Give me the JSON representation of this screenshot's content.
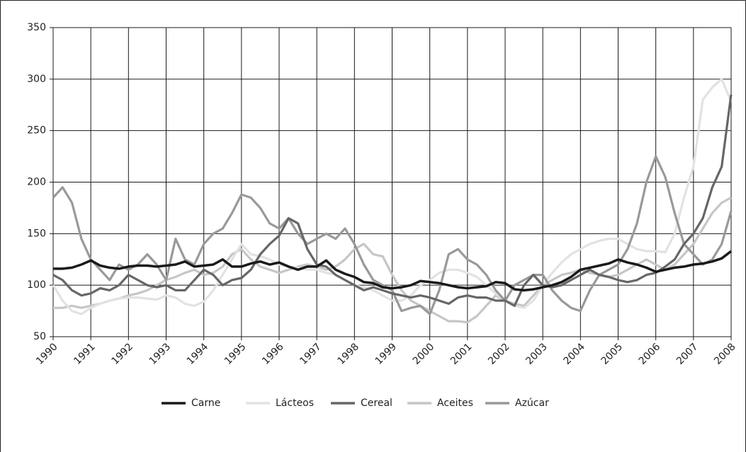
{
  "chart_data": {
    "type": "line",
    "x": [
      1990,
      1990.25,
      1990.5,
      1990.75,
      1991,
      1991.25,
      1991.5,
      1991.75,
      1992,
      1992.25,
      1992.5,
      1992.75,
      1993,
      1993.25,
      1993.5,
      1993.75,
      1994,
      1994.25,
      1994.5,
      1994.75,
      1995,
      1995.25,
      1995.5,
      1995.75,
      1996,
      1996.25,
      1996.5,
      1996.75,
      1997,
      1997.25,
      1997.5,
      1997.75,
      1998,
      1998.25,
      1998.5,
      1998.75,
      1999,
      1999.25,
      1999.5,
      1999.75,
      2000,
      2000.25,
      2000.5,
      2000.75,
      2001,
      2001.25,
      2001.5,
      2001.75,
      2002,
      2002.25,
      2002.5,
      2002.75,
      2003,
      2003.25,
      2003.5,
      2003.75,
      2004,
      2004.25,
      2004.5,
      2004.75,
      2005,
      2005.25,
      2005.5,
      2005.75,
      2006,
      2006.25,
      2006.5,
      2006.75,
      2007,
      2007.25,
      2007.5,
      2007.75,
      2008
    ],
    "series": [
      {
        "name": "Carne",
        "color": "#1a1a1a",
        "values": [
          116,
          116,
          117,
          120,
          124,
          119,
          117,
          116,
          118,
          119,
          119,
          118,
          119,
          120,
          123,
          118,
          119,
          120,
          125,
          118,
          118,
          121,
          123,
          120,
          122,
          118,
          115,
          118,
          118,
          124,
          115,
          111,
          108,
          103,
          102,
          98,
          97,
          98,
          100,
          104,
          103,
          102,
          100,
          98,
          97,
          98,
          99,
          103,
          102,
          96,
          95,
          96,
          98,
          100,
          103,
          108,
          115,
          117,
          119,
          121,
          125,
          122,
          120,
          117,
          113,
          115,
          117,
          118,
          120,
          121,
          123,
          126,
          133
        ]
      },
      {
        "name": "Lácteos",
        "color": "#e2e2e2",
        "values": [
          100,
          85,
          75,
          72,
          78,
          82,
          85,
          87,
          88,
          88,
          87,
          86,
          90,
          88,
          82,
          80,
          84,
          95,
          110,
          125,
          140,
          130,
          128,
          125,
          120,
          118,
          117,
          115,
          115,
          112,
          110,
          105,
          100,
          98,
          95,
          90,
          85,
          85,
          90,
          100,
          105,
          112,
          115,
          115,
          112,
          108,
          100,
          92,
          85,
          80,
          78,
          85,
          100,
          112,
          122,
          130,
          135,
          140,
          143,
          145,
          145,
          140,
          135,
          133,
          133,
          132,
          150,
          185,
          215,
          280,
          292,
          300,
          278
        ]
      },
      {
        "name": "Cereal",
        "color": "#666666",
        "values": [
          110,
          105,
          95,
          90,
          92,
          97,
          95,
          100,
          110,
          105,
          100,
          98,
          100,
          95,
          95,
          105,
          115,
          110,
          100,
          105,
          107,
          115,
          130,
          140,
          148,
          165,
          160,
          135,
          120,
          118,
          110,
          105,
          100,
          95,
          98,
          95,
          92,
          90,
          88,
          90,
          88,
          85,
          82,
          88,
          90,
          88,
          88,
          85,
          85,
          80,
          100,
          110,
          100,
          98,
          100,
          105,
          110,
          115,
          110,
          108,
          105,
          103,
          105,
          110,
          112,
          118,
          125,
          140,
          150,
          165,
          195,
          215,
          285
        ]
      },
      {
        "name": "Aceites",
        "color": "#c6c6c6",
        "values": [
          78,
          78,
          80,
          78,
          80,
          82,
          85,
          87,
          90,
          92,
          95,
          100,
          105,
          108,
          112,
          115,
          110,
          112,
          118,
          130,
          135,
          125,
          118,
          115,
          112,
          115,
          118,
          120,
          118,
          115,
          118,
          125,
          135,
          140,
          130,
          128,
          110,
          95,
          85,
          80,
          75,
          70,
          65,
          65,
          64,
          70,
          80,
          90,
          85,
          82,
          80,
          90,
          100,
          105,
          110,
          112,
          115,
          112,
          110,
          108,
          110,
          115,
          120,
          125,
          120,
          115,
          120,
          130,
          140,
          155,
          170,
          180,
          185
        ]
      },
      {
        "name": "Azúcar",
        "color": "#999999",
        "values": [
          185,
          195,
          180,
          145,
          125,
          115,
          105,
          120,
          115,
          120,
          130,
          120,
          105,
          145,
          125,
          120,
          140,
          150,
          155,
          170,
          188,
          185,
          175,
          160,
          155,
          165,
          150,
          140,
          145,
          150,
          145,
          155,
          140,
          120,
          105,
          100,
          95,
          75,
          78,
          80,
          72,
          95,
          130,
          135,
          125,
          120,
          110,
          95,
          85,
          100,
          105,
          110,
          110,
          95,
          85,
          78,
          75,
          95,
          110,
          115,
          120,
          135,
          160,
          200,
          225,
          205,
          170,
          140,
          130,
          120,
          125,
          140,
          172
        ]
      }
    ],
    "xlim": [
      1990,
      2008
    ],
    "xticks": [
      1990,
      1991,
      1992,
      1993,
      1994,
      1995,
      1996,
      1997,
      1998,
      1999,
      2000,
      2001,
      2002,
      2003,
      2004,
      2005,
      2006,
      2007,
      2008
    ],
    "ylim": [
      50,
      350
    ],
    "yticks": [
      50,
      100,
      150,
      200,
      250,
      300,
      350
    ],
    "grid": true
  }
}
